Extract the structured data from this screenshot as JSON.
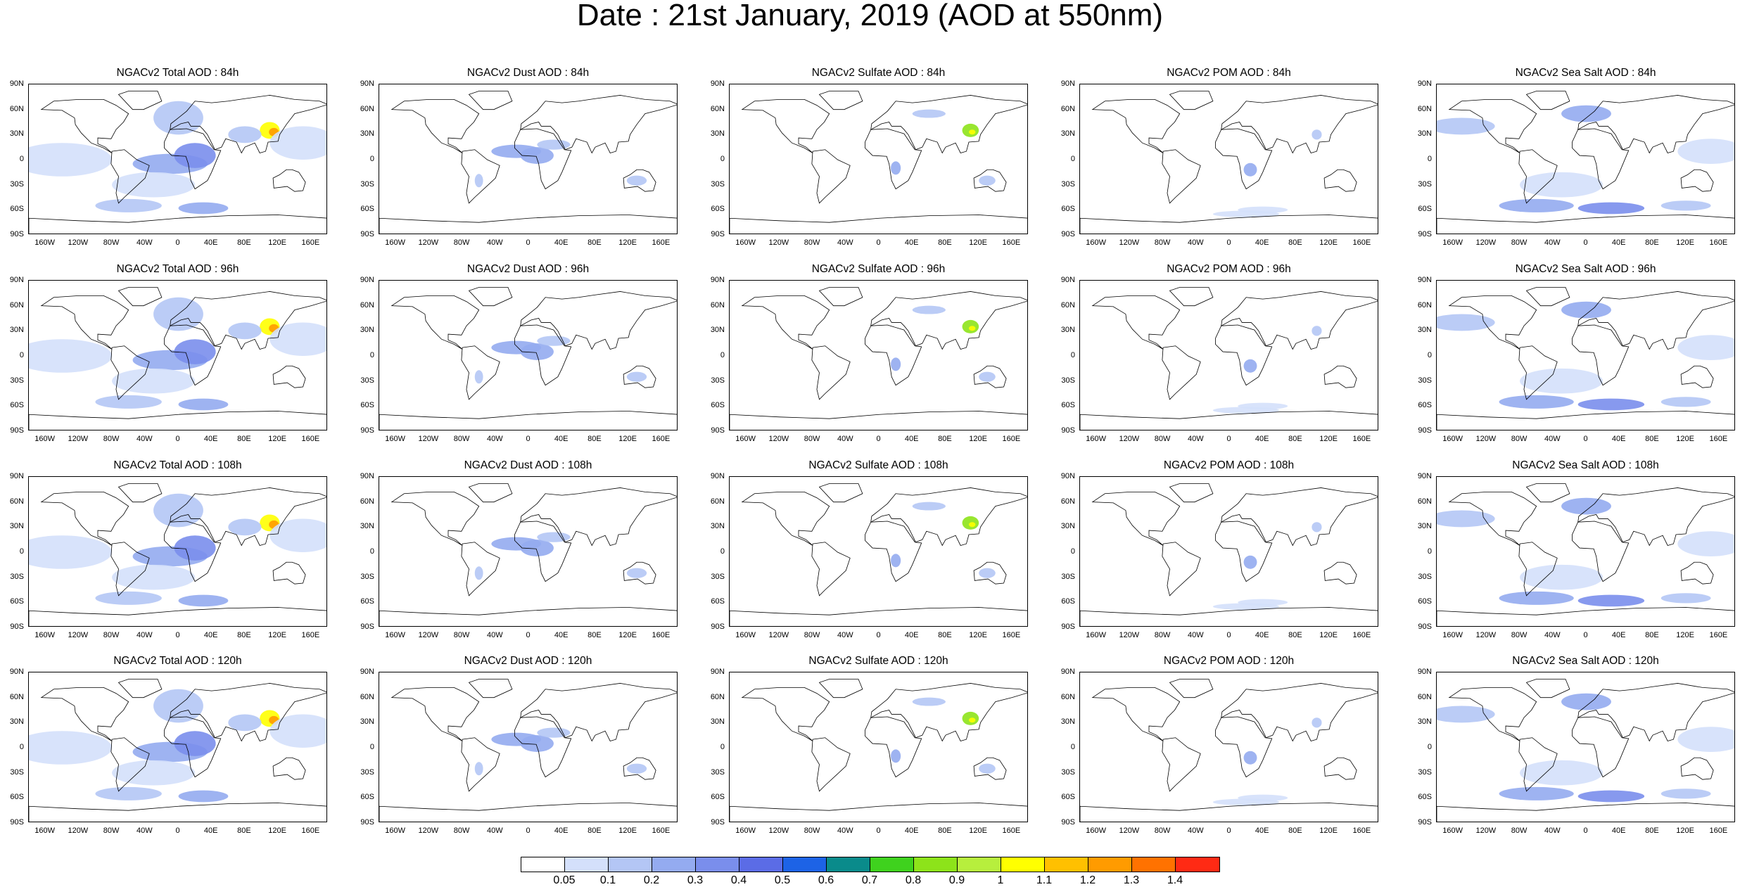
{
  "page_title": "Date : 21st January, 2019 (AOD at 550nm)",
  "panel_titles": [
    [
      "NGACv2 Total AOD : 84h",
      "NGACv2 Dust AOD : 84h",
      "NGACv2 Sulfate AOD : 84h",
      "NGACv2 POM AOD : 84h",
      "NGACv2 Sea Salt AOD : 84h"
    ],
    [
      "NGACv2 Total AOD : 96h",
      "NGACv2 Dust AOD : 96h",
      "NGACv2 Sulfate AOD : 96h",
      "NGACv2 POM AOD : 96h",
      "NGACv2 Sea Salt AOD : 96h"
    ],
    [
      "NGACv2 Total AOD : 108h",
      "NGACv2 Dust AOD : 108h",
      "NGACv2 Sulfate AOD : 108h",
      "NGACv2 POM AOD : 108h",
      "NGACv2 Sea Salt AOD : 108h"
    ],
    [
      "NGACv2 Total AOD : 120h",
      "NGACv2 Dust AOD : 120h",
      "NGACv2 Sulfate AOD : 120h",
      "NGACv2 POM AOD : 120h",
      "NGACv2 Sea Salt  AOD : 120h"
    ]
  ],
  "lat_ticks": [
    "90N",
    "60N",
    "30N",
    "0",
    "30S",
    "60S",
    "90S"
  ],
  "lon_ticks": [
    "160W",
    "120W",
    "80W",
    "40W",
    "0",
    "40E",
    "80E",
    "120E",
    "160E"
  ],
  "colorbar": {
    "labels": [
      "0.05",
      "0.1",
      "0.2",
      "0.3",
      "0.4",
      "0.5",
      "0.6",
      "0.7",
      "0.8",
      "0.9",
      "1",
      "1.1",
      "1.2",
      "1.3",
      "1.4"
    ],
    "colors": [
      "#ffffff",
      "#d4e0fb",
      "#b4c6f5",
      "#94abf0",
      "#7a8eec",
      "#5b6ce6",
      "#1d63e6",
      "#0a8b8b",
      "#3fd21e",
      "#8de31a",
      "#b7ef3d",
      "#ffff00",
      "#ffc000",
      "#ff9b00",
      "#ff7200",
      "#ff2a14"
    ]
  },
  "species_intensity": {
    "total": 3,
    "dust": 1,
    "sulfate": 1,
    "pom": 1,
    "seasalt": 2
  }
}
